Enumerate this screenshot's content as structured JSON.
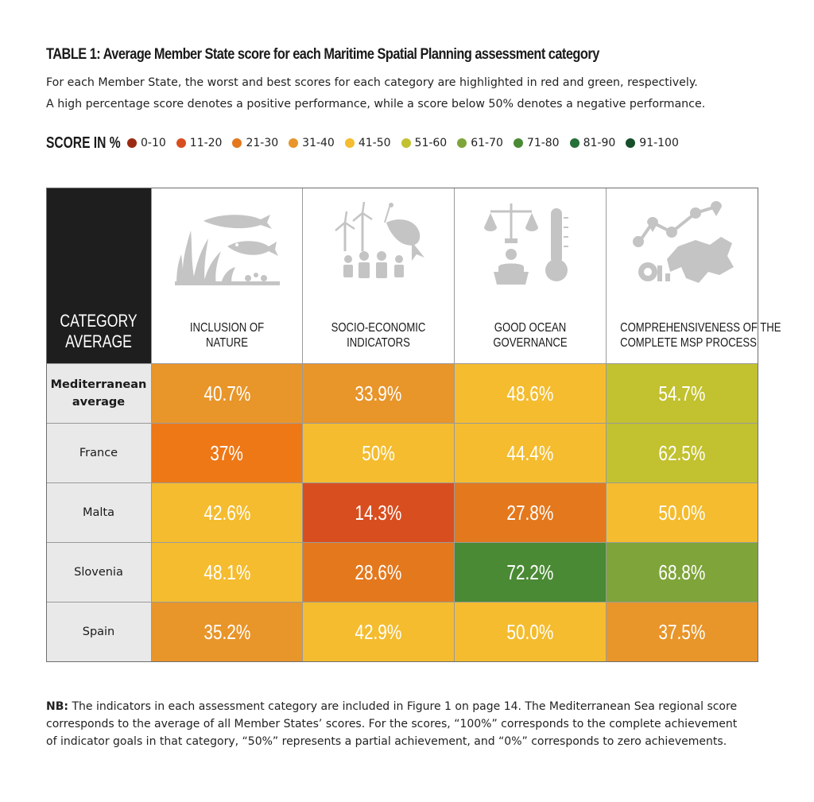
{
  "title": "TABLE 1: Average Member State score for each Maritime Spatial Planning assessment category",
  "subtitle_lines": [
    "For each Member State, the worst and best scores for each category are highlighted in red and green, respectively.",
    "A high percentage score denotes a positive performance, while a score below 50% denotes a negative performance."
  ],
  "legend": {
    "title": "SCORE IN %",
    "items": [
      {
        "label": "0-10",
        "color": "#9b2a12"
      },
      {
        "label": "11-20",
        "color": "#d94e1f"
      },
      {
        "label": "21-30",
        "color": "#e4781d"
      },
      {
        "label": "31-40",
        "color": "#e8952a"
      },
      {
        "label": "41-50",
        "color": "#f4bc2e"
      },
      {
        "label": "51-60",
        "color": "#c2c12f"
      },
      {
        "label": "61-70",
        "color": "#7fa43a"
      },
      {
        "label": "71-80",
        "color": "#4a8a34"
      },
      {
        "label": "81-90",
        "color": "#26703a"
      },
      {
        "label": "91-100",
        "color": "#164f2a"
      }
    ]
  },
  "chart_data": {
    "type": "table",
    "corner_header": [
      "CATEGORY",
      "AVERAGE"
    ],
    "columns": [
      {
        "lines": [
          "INCLUSION OF",
          "NATURE"
        ],
        "icon": "nature-icon"
      },
      {
        "lines": [
          "SOCIO-ECONOMIC",
          "INDICATORS"
        ],
        "icon": "socio-economic-icon"
      },
      {
        "lines": [
          "GOOD OCEAN",
          "GOVERNANCE"
        ],
        "icon": "governance-icon"
      },
      {
        "lines": [
          "COMPREHENSIVENESS OF THE",
          "COMPLETE MSP PROCESS"
        ],
        "icon": "msp-process-icon"
      }
    ],
    "rows": [
      {
        "label": [
          "Mediterranean",
          "average"
        ],
        "bold": true,
        "cells": [
          {
            "text": "40.7%",
            "color": "#e8952a"
          },
          {
            "text": "33.9%",
            "color": "#e8952a"
          },
          {
            "text": "48.6%",
            "color": "#f4bc2e"
          },
          {
            "text": "54.7%",
            "color": "#c2c12f"
          }
        ]
      },
      {
        "label": [
          "France"
        ],
        "bold": false,
        "cells": [
          {
            "text": "37%",
            "color": "#ee7716"
          },
          {
            "text": "50%",
            "color": "#f4bc2e"
          },
          {
            "text": "44.4%",
            "color": "#f4bc2e"
          },
          {
            "text": "62.5%",
            "color": "#c2c12f"
          }
        ]
      },
      {
        "label": [
          "Malta"
        ],
        "bold": false,
        "cells": [
          {
            "text": "42.6%",
            "color": "#f4bc2e"
          },
          {
            "text": "14.3%",
            "color": "#d94e1f"
          },
          {
            "text": "27.8%",
            "color": "#e4781d"
          },
          {
            "text": "50.0%",
            "color": "#f4bc2e"
          }
        ]
      },
      {
        "label": [
          "Slovenia"
        ],
        "bold": false,
        "cells": [
          {
            "text": "48.1%",
            "color": "#f4bc2e"
          },
          {
            "text": "28.6%",
            "color": "#e4781d"
          },
          {
            "text": "72.2%",
            "color": "#4a8a34"
          },
          {
            "text": "68.8%",
            "color": "#7fa43a"
          }
        ]
      },
      {
        "label": [
          "Spain"
        ],
        "bold": false,
        "cells": [
          {
            "text": "35.2%",
            "color": "#e8952a"
          },
          {
            "text": "42.9%",
            "color": "#f4bc2e"
          },
          {
            "text": "50.0%",
            "color": "#f4bc2e"
          },
          {
            "text": "37.5%",
            "color": "#e8952a"
          }
        ]
      }
    ]
  },
  "note": {
    "lead": "NB:",
    "lines": [
      " The indicators in each assessment category are included in Figure 1 on page 14. The Mediterranean Sea regional score",
      "corresponds to the average of all Member States’ scores. For the scores, “100%” corresponds to the complete achievement",
      "of indicator goals in that category, “50%” represents a partial achievement, and “0%” corresponds to zero achievements."
    ]
  },
  "colors": {
    "icon_gray": "#c4c4c4",
    "corner_bg": "#1e1e1e",
    "label_bg": "#e9e9e9"
  }
}
